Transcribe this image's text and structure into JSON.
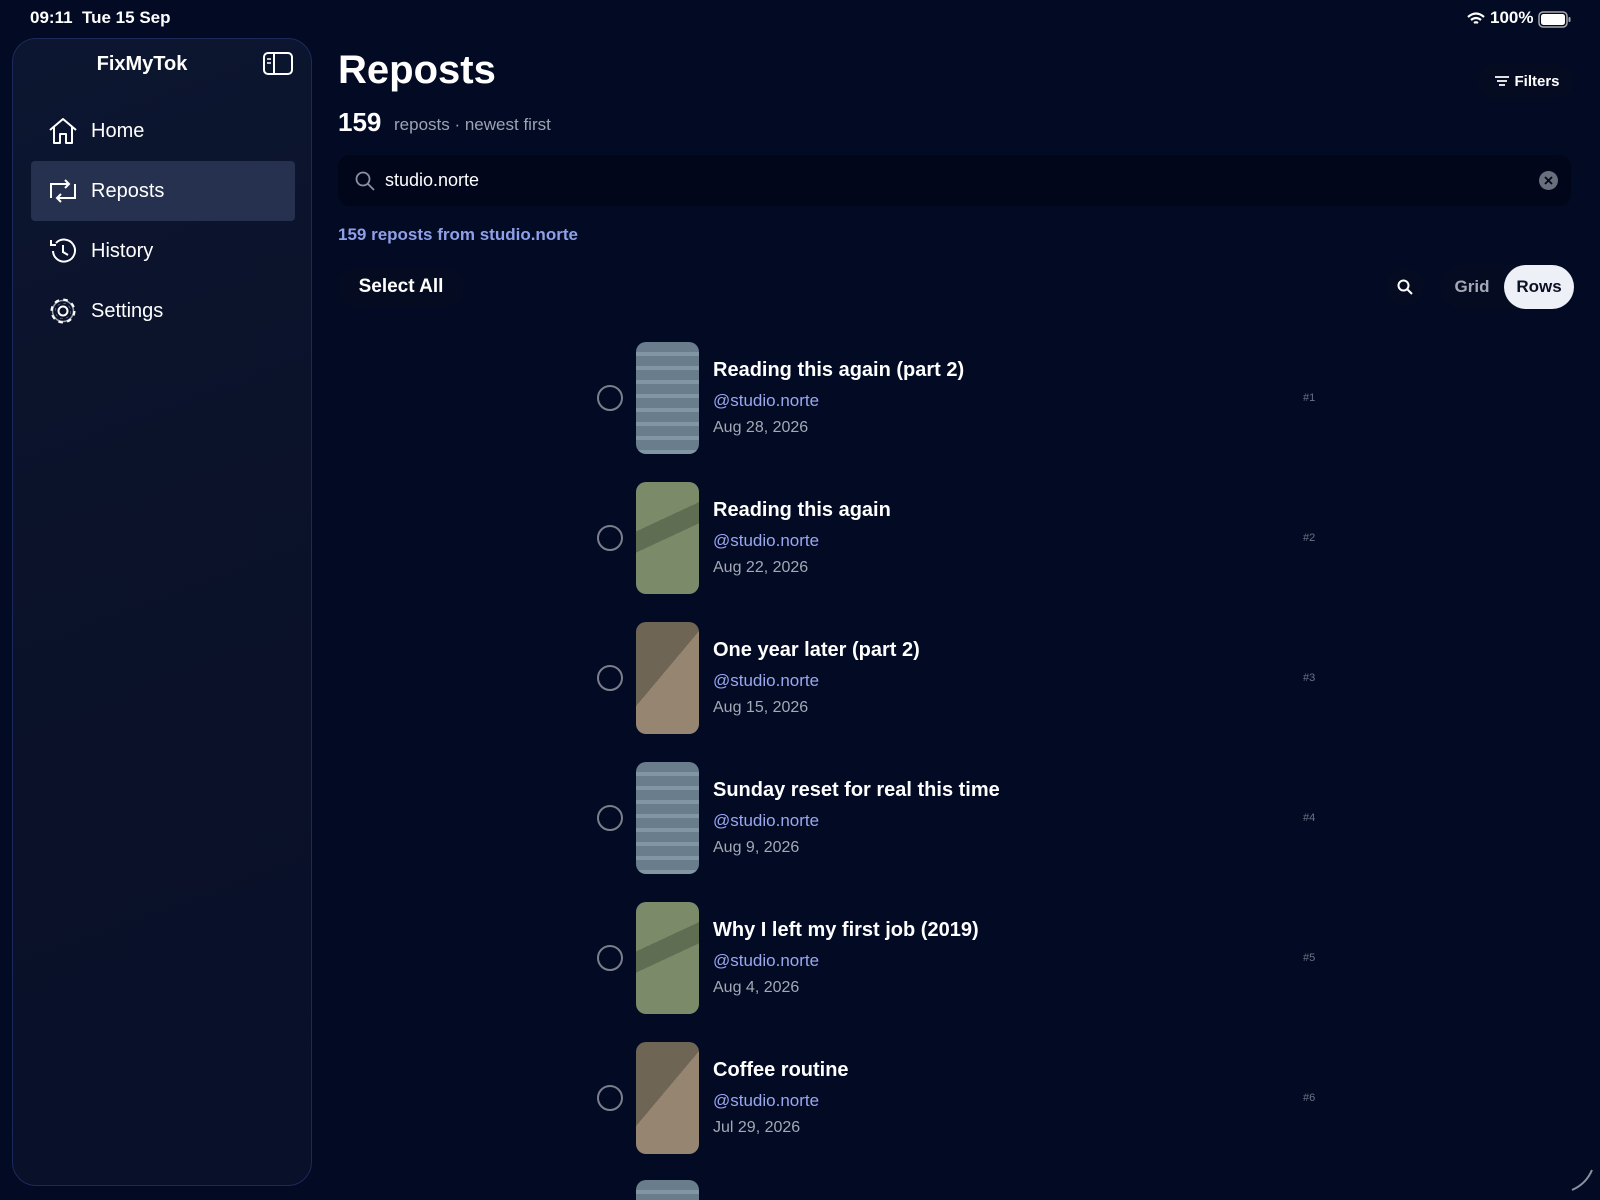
{
  "status_bar": {
    "time": "09:11",
    "date": "Tue 15 Sep",
    "battery": "100%"
  },
  "sidebar": {
    "app_name": "FixMyTok",
    "nav": [
      "Home",
      "Reposts",
      "History",
      "Settings"
    ]
  },
  "header": {
    "title": "Reposts",
    "count": "159",
    "subtitle": "reposts · newest first",
    "filters": "Filters"
  },
  "search": {
    "query": "studio.norte"
  },
  "result_summary": "159 reposts from studio.norte",
  "toolbar": {
    "select_all": "Select All",
    "view_options": [
      "Grid",
      "Rows"
    ]
  },
  "reposts": [
    {
      "title": "Reading this again (part 2)",
      "handle": "@studio.norte",
      "date": "Aug 28, 2026",
      "index": "#1"
    },
    {
      "title": "Reading this again",
      "handle": "@studio.norte",
      "date": "Aug 22, 2026",
      "index": "#2"
    },
    {
      "title": "One year later (part 2)",
      "handle": "@studio.norte",
      "date": "Aug 15, 2026",
      "index": "#3"
    },
    {
      "title": "Sunday reset for real this time",
      "handle": "@studio.norte",
      "date": "Aug 9, 2026",
      "index": "#4"
    },
    {
      "title": "Why I left my first job (2019)",
      "handle": "@studio.norte",
      "date": "Aug 4, 2026",
      "index": "#5"
    },
    {
      "title": "Coffee routine",
      "handle": "@studio.norte",
      "date": "Jul 29, 2026",
      "index": "#6"
    }
  ]
}
